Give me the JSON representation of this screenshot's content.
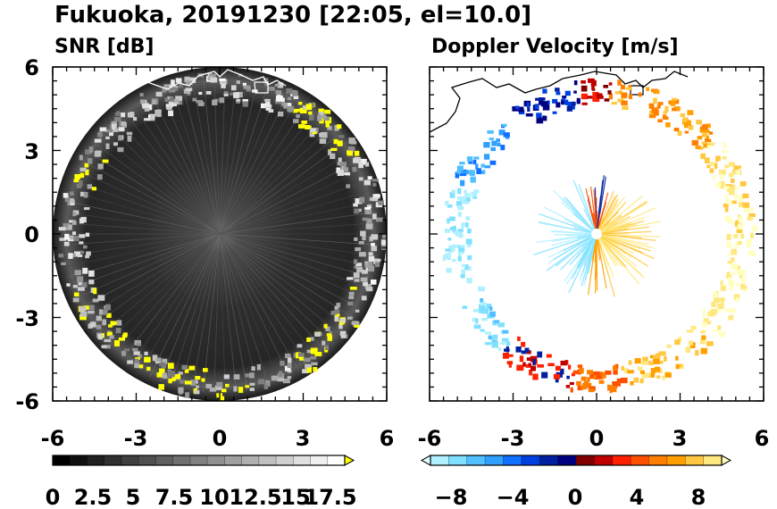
{
  "figure": {
    "title": "Fukuoka, 20191230 [22:05, el=10.0]"
  },
  "chart_data": [
    {
      "type": "heatmap",
      "title": "SNR [dB]",
      "xlim": [
        -6,
        6
      ],
      "ylim": [
        -6,
        6
      ],
      "xticks": [
        "-6",
        "-3",
        "0",
        "3",
        "6"
      ],
      "yticks": [
        "6",
        "3",
        "0",
        "-3",
        "-6"
      ],
      "grid": false,
      "projection": "polar radar scan (PPI), range about 6",
      "colorbar": {
        "label_ticks": [
          "0",
          "2.5",
          "5",
          "7.5",
          "10",
          "12.5",
          "15",
          "17.5"
        ],
        "range": [
          0,
          20
        ],
        "extend": "max",
        "colors": [
          "#000000",
          "#101010",
          "#202020",
          "#303030",
          "#404040",
          "#505050",
          "#606060",
          "#707070",
          "#808080",
          "#909090",
          "#a0a0a0",
          "#b0b0b0",
          "#c0c0c0",
          "#d0d0d0",
          "#e0e0e0",
          "#f0f0f0",
          "#ffffff",
          "#ffff00"
        ]
      }
    },
    {
      "type": "heatmap",
      "title": "Doppler Velocity [m/s]",
      "xlim": [
        -6,
        6
      ],
      "ylim": [
        -6,
        6
      ],
      "xticks": [
        "-6",
        "-3",
        "0",
        "3",
        "6"
      ],
      "yticks": [
        "6",
        "3",
        "0",
        "-3",
        "-6"
      ],
      "grid": false,
      "projection": "polar radar scan (PPI), range about 6",
      "colorbar": {
        "label_ticks": [
          "−8",
          "−4",
          "0",
          "4",
          "8"
        ],
        "range": [
          -10,
          10
        ],
        "extend": "both",
        "colors": [
          "#e0ffff",
          "#b0f0ff",
          "#80e0ff",
          "#50c0ff",
          "#30a0ff",
          "#1070ff",
          "#0040e0",
          "#0020a0",
          "#000080",
          "#800000",
          "#c00000",
          "#ff2000",
          "#ff5000",
          "#ff8000",
          "#ffa000",
          "#ffc840",
          "#ffe880",
          "#ffffc0"
        ]
      }
    }
  ]
}
